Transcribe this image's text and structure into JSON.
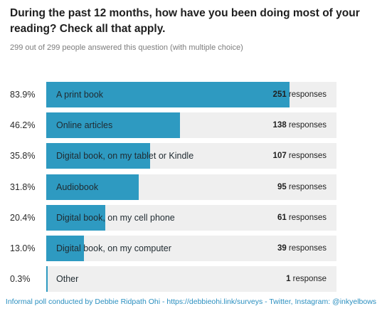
{
  "question": "During the past 12 months, how have you been doing most of your reading? Check all that apply.",
  "subtitle": "299 out of 299 people answered this question (with multiple choice)",
  "footer": "Informal poll conducted by Debbie Ridpath Ohi - https://debbieohi.link/surveys - Twitter, Instagram: @inkyelbows",
  "colors": {
    "bar": "#2e9ac1",
    "track": "#efefef",
    "footer": "#2a8fc0"
  },
  "chart_data": {
    "type": "bar",
    "orientation": "horizontal",
    "title": "During the past 12 months, how have you been doing most of your reading? Check all that apply.",
    "unit_label": "responses",
    "total_respondents": 299,
    "items": [
      {
        "label": "A print book",
        "percent": "83.9%",
        "value": 83.9,
        "count": 251,
        "count_unit": "responses"
      },
      {
        "label": "Online articles",
        "percent": "46.2%",
        "value": 46.2,
        "count": 138,
        "count_unit": "responses"
      },
      {
        "label": "Digital book, on my tablet or Kindle",
        "percent": "35.8%",
        "value": 35.8,
        "count": 107,
        "count_unit": "responses"
      },
      {
        "label": "Audiobook",
        "percent": "31.8%",
        "value": 31.8,
        "count": 95,
        "count_unit": "responses"
      },
      {
        "label": "Digital book, on my cell phone",
        "percent": "20.4%",
        "value": 20.4,
        "count": 61,
        "count_unit": "responses"
      },
      {
        "label": "Digital book, on my computer",
        "percent": "13.0%",
        "value": 13.0,
        "count": 39,
        "count_unit": "responses"
      },
      {
        "label": "Other",
        "percent": "0.3%",
        "value": 0.3,
        "count": 1,
        "count_unit": "response"
      }
    ]
  }
}
